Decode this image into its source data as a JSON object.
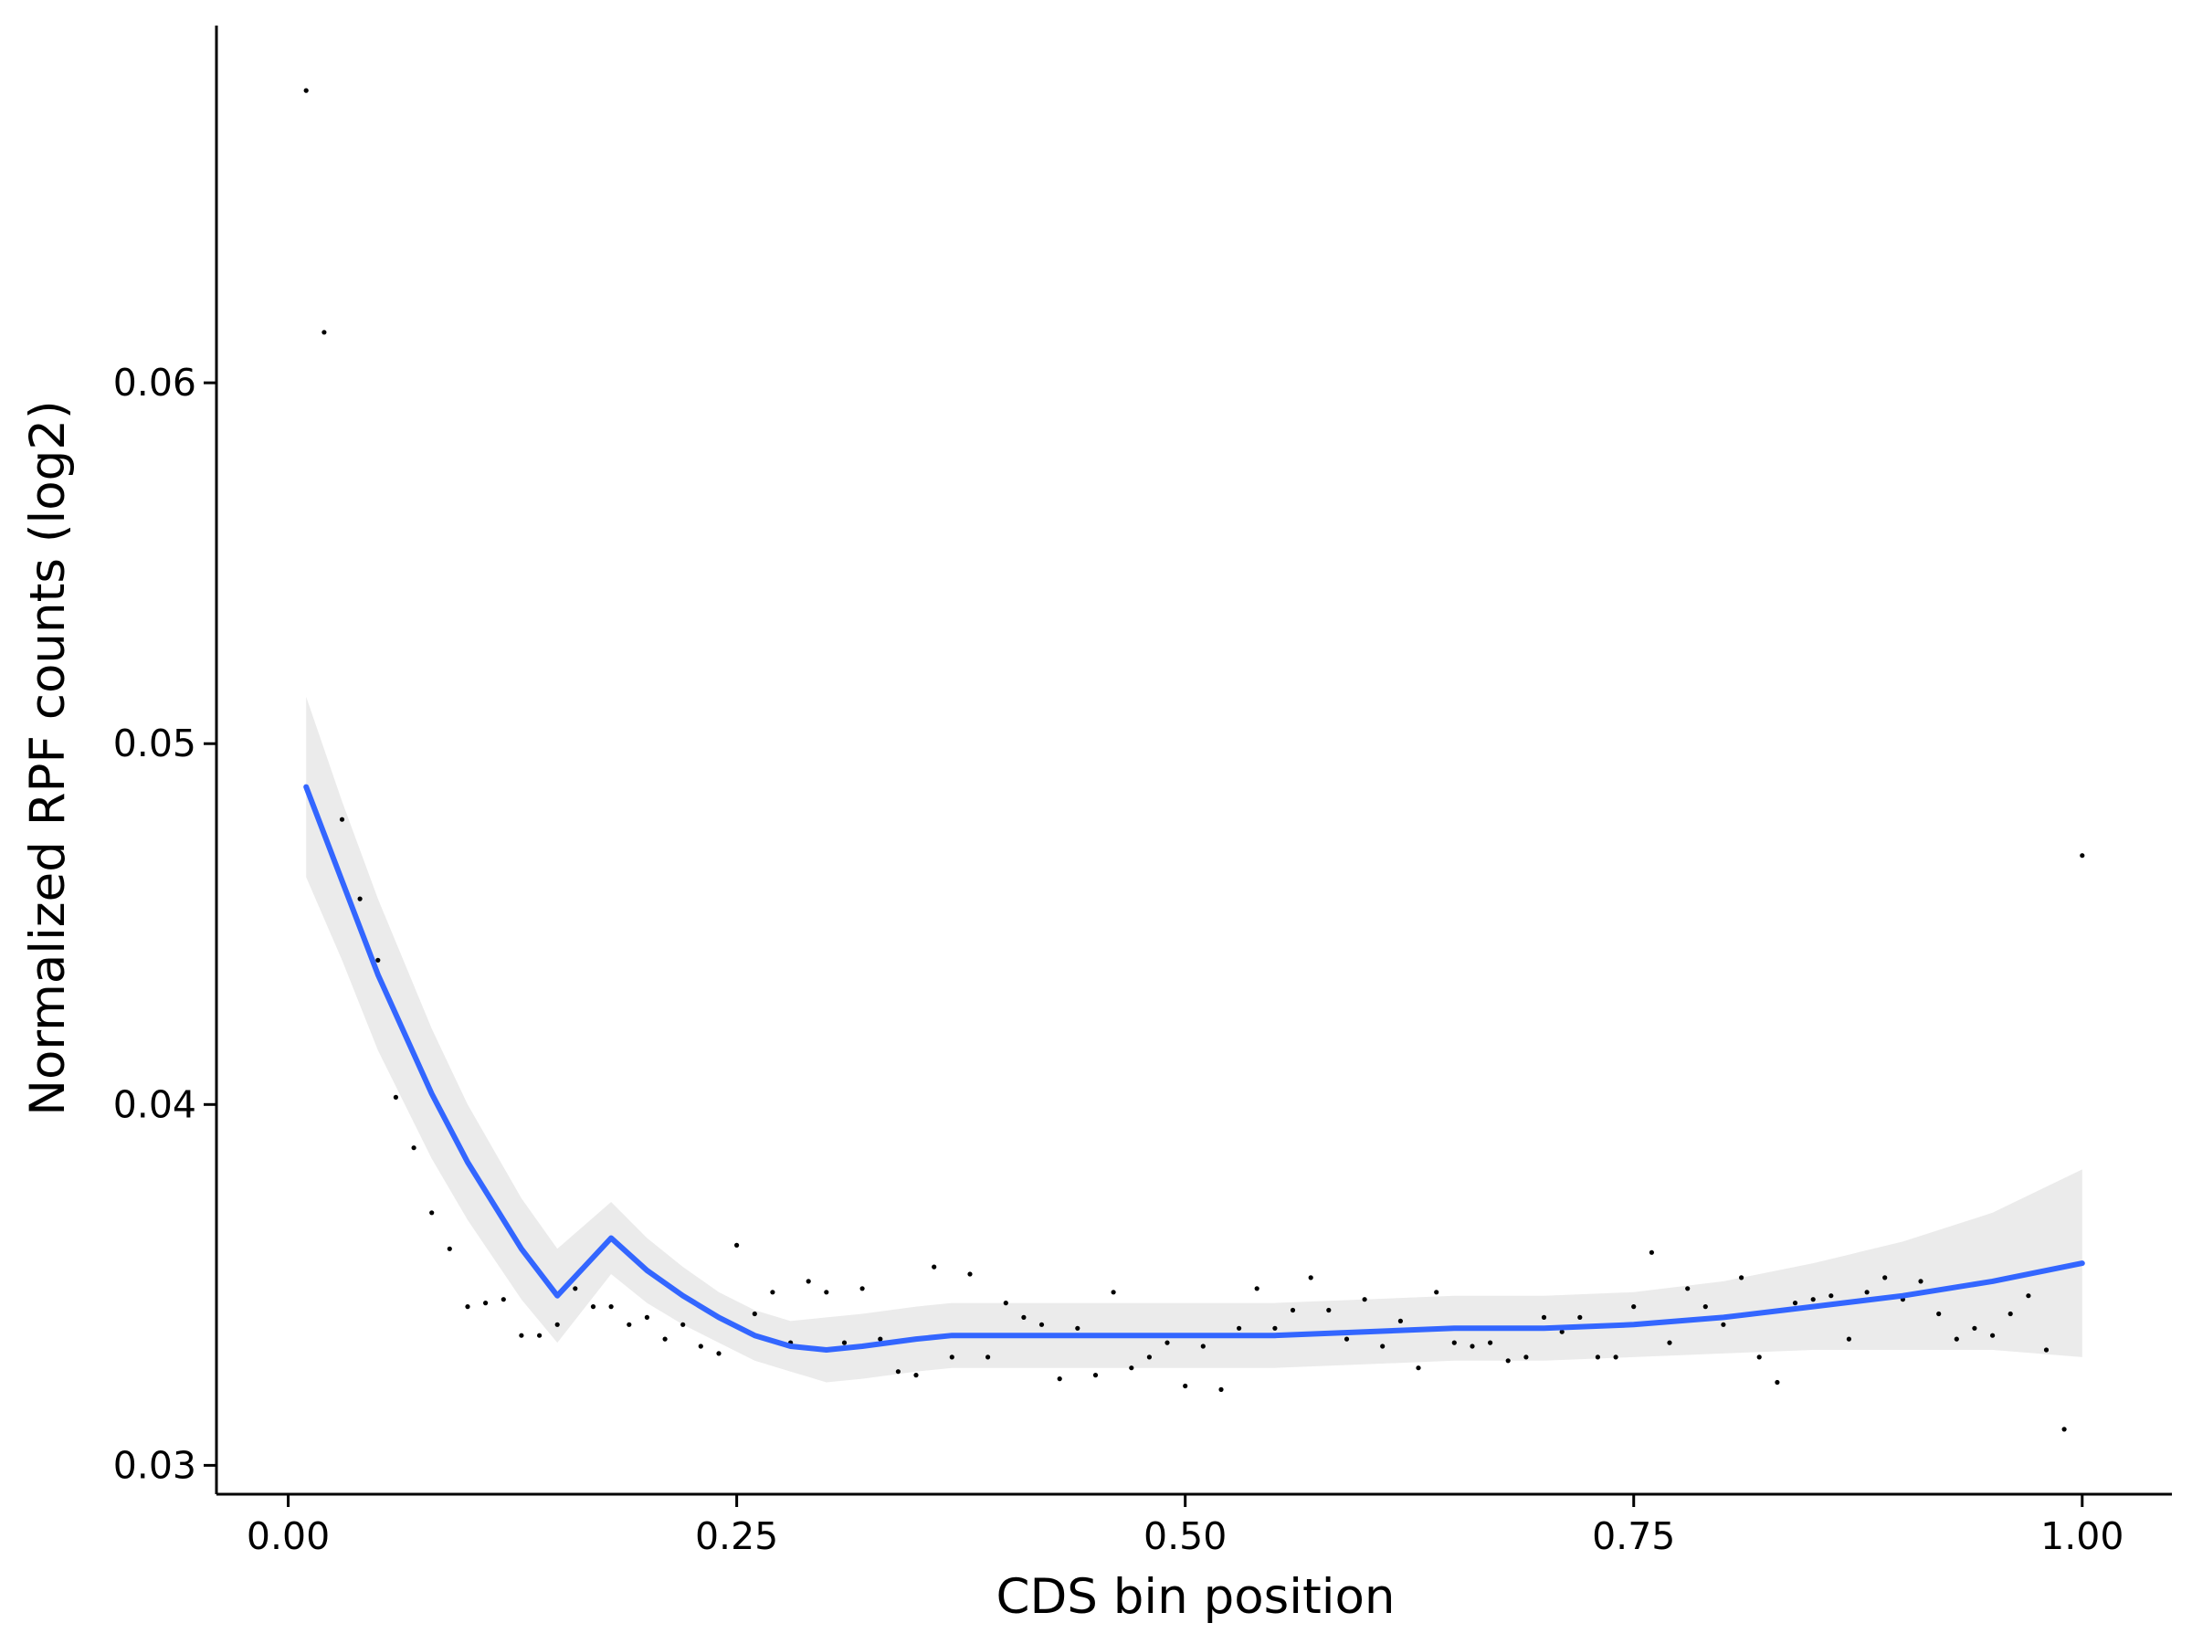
{
  "chart_data": {
    "type": "scatter",
    "title": "",
    "xlabel": "CDS bin position",
    "ylabel": "Normalized RPF counts (log2)",
    "xlim": [
      -0.04,
      1.05
    ],
    "ylim": [
      0.0292,
      0.0699
    ],
    "x_ticks": [
      0.0,
      0.25,
      0.5,
      0.75,
      1.0
    ],
    "x_tick_labels": [
      "0.00",
      "0.25",
      "0.50",
      "0.75",
      "1.00"
    ],
    "y_ticks": [
      0.03,
      0.04,
      0.05,
      0.06
    ],
    "y_tick_labels": [
      "0.03",
      "0.04",
      "0.05",
      "0.06"
    ],
    "grid": false,
    "legend": "none",
    "points_color": "#000000",
    "smooth_color": "#3366FF",
    "band_color": "#EBEBEB",
    "points": {
      "x": [
        0.01,
        0.02,
        0.03,
        0.04,
        0.05,
        0.06,
        0.07,
        0.08,
        0.09,
        0.1,
        0.11,
        0.12,
        0.13,
        0.14,
        0.15,
        0.16,
        0.17,
        0.18,
        0.19,
        0.2,
        0.21,
        0.22,
        0.23,
        0.24,
        0.25,
        0.26,
        0.27,
        0.28,
        0.29,
        0.3,
        0.31,
        0.32,
        0.33,
        0.34,
        0.35,
        0.36,
        0.37,
        0.38,
        0.39,
        0.4,
        0.41,
        0.42,
        0.43,
        0.44,
        0.45,
        0.46,
        0.47,
        0.48,
        0.49,
        0.5,
        0.51,
        0.52,
        0.53,
        0.54,
        0.55,
        0.56,
        0.57,
        0.58,
        0.59,
        0.6,
        0.61,
        0.62,
        0.63,
        0.64,
        0.65,
        0.66,
        0.67,
        0.68,
        0.69,
        0.7,
        0.71,
        0.72,
        0.73,
        0.74,
        0.75,
        0.76,
        0.77,
        0.78,
        0.79,
        0.8,
        0.81,
        0.82,
        0.83,
        0.84,
        0.85,
        0.86,
        0.87,
        0.88,
        0.89,
        0.9,
        0.91,
        0.92,
        0.93,
        0.94,
        0.95,
        0.96,
        0.97,
        0.98,
        0.99,
        1.0
      ],
      "y": [
        0.0681,
        0.0614,
        0.0479,
        0.0457,
        0.044,
        0.0402,
        0.0388,
        0.037,
        0.036,
        0.0344,
        0.0345,
        0.0346,
        0.0336,
        0.0336,
        0.0339,
        0.0349,
        0.0344,
        0.0344,
        0.0339,
        0.0341,
        0.0335,
        0.0339,
        0.0333,
        0.0331,
        0.0361,
        0.0342,
        0.0348,
        0.0334,
        0.0351,
        0.0348,
        0.0334,
        0.0349,
        0.0335,
        0.0326,
        0.0325,
        0.0355,
        0.033,
        0.0353,
        0.033,
        0.0345,
        0.0341,
        0.0339,
        0.0324,
        0.0338,
        0.0325,
        0.0348,
        0.0327,
        0.033,
        0.0334,
        0.0322,
        0.0333,
        0.0321,
        0.0338,
        0.0349,
        0.0338,
        0.0343,
        0.0352,
        0.0343,
        0.0335,
        0.0346,
        0.0333,
        0.034,
        0.0327,
        0.0348,
        0.0334,
        0.0333,
        0.0334,
        0.0329,
        0.033,
        0.0341,
        0.0337,
        0.0341,
        0.033,
        0.033,
        0.0344,
        0.0359,
        0.0334,
        0.0349,
        0.0344,
        0.0339,
        0.0352,
        0.033,
        0.0323,
        0.0345,
        0.0346,
        0.0347,
        0.0335,
        0.0348,
        0.0352,
        0.0346,
        0.0351,
        0.0342,
        0.0335,
        0.0338,
        0.0336,
        0.0342,
        0.0347,
        0.0332,
        0.031,
        0.0469
      ]
    },
    "smooth": {
      "x": [
        0.01,
        0.03,
        0.05,
        0.08,
        0.1,
        0.13,
        0.15,
        0.18,
        0.2,
        0.22,
        0.24,
        0.26,
        0.28,
        0.3,
        0.32,
        0.35,
        0.37,
        0.4,
        0.45,
        0.5,
        0.55,
        0.6,
        0.65,
        0.7,
        0.75,
        0.8,
        0.85,
        0.9,
        0.95,
        1.0
      ],
      "y": [
        0.0488,
        0.0462,
        0.0436,
        0.0403,
        0.0384,
        0.036,
        0.0347,
        0.0363,
        0.0354,
        0.0347,
        0.0341,
        0.0336,
        0.0333,
        0.0332,
        0.0333,
        0.0335,
        0.0336,
        0.0336,
        0.0336,
        0.0336,
        0.0336,
        0.0337,
        0.0338,
        0.0338,
        0.0339,
        0.0341,
        0.0344,
        0.0347,
        0.0351,
        0.0356
      ]
    },
    "band": {
      "x": [
        0.01,
        0.03,
        0.05,
        0.08,
        0.1,
        0.13,
        0.15,
        0.18,
        0.2,
        0.22,
        0.24,
        0.26,
        0.28,
        0.3,
        0.32,
        0.35,
        0.37,
        0.4,
        0.45,
        0.5,
        0.55,
        0.6,
        0.65,
        0.7,
        0.75,
        0.8,
        0.85,
        0.9,
        0.95,
        1.0
      ],
      "upper": [
        0.0513,
        0.0484,
        0.0457,
        0.0421,
        0.04,
        0.0374,
        0.036,
        0.0373,
        0.0363,
        0.0355,
        0.0348,
        0.0343,
        0.034,
        0.0341,
        0.0342,
        0.0344,
        0.0345,
        0.0345,
        0.0345,
        0.0345,
        0.0345,
        0.0346,
        0.0347,
        0.0347,
        0.0348,
        0.0351,
        0.0356,
        0.0362,
        0.037,
        0.0382
      ],
      "lower": [
        0.0463,
        0.044,
        0.0415,
        0.0385,
        0.0368,
        0.0346,
        0.0334,
        0.0353,
        0.0345,
        0.0339,
        0.0334,
        0.0329,
        0.0326,
        0.0323,
        0.0324,
        0.0326,
        0.0327,
        0.0327,
        0.0327,
        0.0327,
        0.0327,
        0.0328,
        0.0329,
        0.0329,
        0.033,
        0.0331,
        0.0332,
        0.0332,
        0.0332,
        0.033
      ]
    }
  }
}
